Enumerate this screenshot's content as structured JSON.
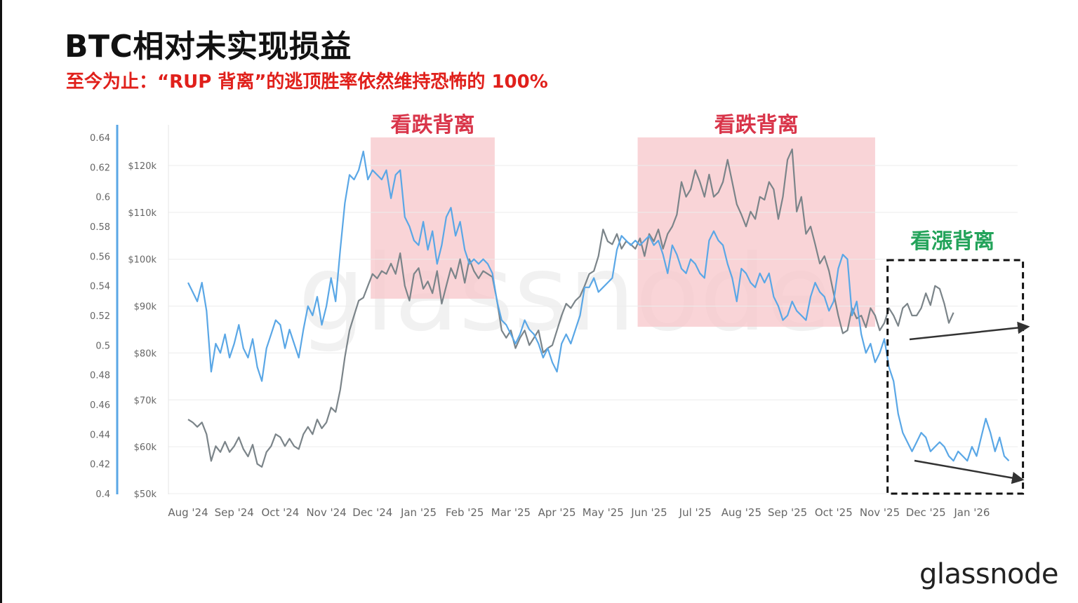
{
  "header": {
    "title": "BTC相对未实现损益",
    "subtitle": "至今为止：“RUP 背离”的逃顶胜率依然维持恐怖的 100%"
  },
  "brand": {
    "logo_text": "glassnode",
    "watermark_text": "glassnode"
  },
  "colors": {
    "btc_price": "#5aa7e6",
    "rup": "#7b8489",
    "bearish_zone": "#f7c5ca",
    "bearish_label": "#d9354a",
    "bullish_label": "#23a35a",
    "title_red": "#e0201b"
  },
  "chart_data": {
    "type": "line",
    "title": "",
    "x_ticks": [
      "Aug '24",
      "Sep '24",
      "Oct '24",
      "Nov '24",
      "Dec '24",
      "Jan '25",
      "Feb '25",
      "Mar '25",
      "Apr '25",
      "May '25",
      "Jun '25",
      "Jul '25",
      "Aug '25",
      "Sep '25",
      "Oct '25",
      "Nov '25",
      "Dec '25",
      "Jan '26"
    ],
    "y_left": {
      "ticks": [
        "0.64",
        "0.62",
        "0.6",
        "0.58",
        "0.56",
        "0.54",
        "0.52",
        "0.5",
        "0.48",
        "0.46",
        "0.44",
        "0.42",
        "0.4"
      ],
      "range": [
        0.4,
        0.64
      ]
    },
    "y_right": {
      "ticks": [
        "$120k",
        "$110k",
        "$100k",
        "$90k",
        "$80k",
        "$70k",
        "$60k",
        "$50k"
      ],
      "range": [
        50,
        120
      ]
    },
    "grid": true,
    "legend": "none",
    "series": [
      {
        "axis": "right",
        "x_month_index": [
          0,
          0.1,
          0.2,
          0.3,
          0.4,
          0.5,
          0.6,
          0.7,
          0.8,
          0.9,
          1.0,
          1.1,
          1.2,
          1.3,
          1.4,
          1.5,
          1.6,
          1.7,
          1.8,
          1.9,
          2.0,
          2.1,
          2.2,
          2.3,
          2.4,
          2.5,
          2.6,
          2.7,
          2.8,
          2.9,
          3.0,
          3.1,
          3.2,
          3.3,
          3.4,
          3.5,
          3.6,
          3.7,
          3.8,
          3.9,
          4.0,
          4.1,
          4.2,
          4.3,
          4.4,
          4.5,
          4.6,
          4.7,
          4.8,
          4.9,
          5.0,
          5.1,
          5.2,
          5.3,
          5.4,
          5.5,
          5.6,
          5.7,
          5.8,
          5.9,
          6.0,
          6.1,
          6.2,
          6.3,
          6.4,
          6.5,
          6.6,
          6.7,
          6.8,
          6.9,
          7.0,
          7.1,
          7.2,
          7.3,
          7.4,
          7.5,
          7.6,
          7.7,
          7.8,
          7.9,
          8.0,
          8.1,
          8.2,
          8.3,
          8.4,
          8.5,
          8.6,
          8.7,
          8.8,
          8.9,
          9.0,
          9.1,
          9.2,
          9.3,
          9.4,
          9.5,
          9.6,
          9.7,
          9.8,
          9.9,
          10.0,
          10.1,
          10.2,
          10.3,
          10.4,
          10.5,
          10.6,
          10.7,
          10.8,
          10.9,
          11.0,
          11.1,
          11.2,
          11.3,
          11.4,
          11.5,
          11.6,
          11.7,
          11.8,
          11.9,
          12.0,
          12.1,
          12.2,
          12.3,
          12.4,
          12.5,
          12.6,
          12.7,
          12.8,
          12.9,
          13.0,
          13.1,
          13.2,
          13.3,
          13.4,
          13.5,
          13.6,
          13.7,
          13.8,
          13.9,
          14.0,
          14.1,
          14.2,
          14.3,
          14.4,
          14.5,
          14.6,
          14.7,
          14.8,
          14.9,
          15.0,
          15.1,
          15.2,
          15.3,
          15.4,
          15.5,
          15.6,
          15.7,
          15.8,
          15.9,
          16.0,
          16.1,
          16.2,
          16.3,
          16.4,
          16.5,
          16.6,
          16.7,
          16.8,
          16.9,
          17.0,
          17.1,
          17.2,
          17.3,
          17.4,
          17.5,
          17.6,
          17.7,
          17.8
        ],
        "values": [
          95,
          93,
          91,
          95,
          89,
          76,
          82,
          80,
          84,
          79,
          82,
          86,
          81,
          79,
          83,
          77,
          74,
          81,
          84,
          87,
          86,
          81,
          85,
          82,
          79,
          85,
          90,
          88,
          92,
          86,
          90,
          96,
          91,
          102,
          112,
          118,
          117,
          119,
          123,
          117,
          119,
          118,
          117,
          119,
          113,
          118,
          119,
          109,
          107,
          104,
          103,
          108,
          102,
          106,
          99,
          103,
          109,
          111,
          105,
          108,
          102,
          99,
          100,
          99,
          100,
          99,
          97,
          91,
          87,
          86,
          84,
          82,
          84,
          87,
          85,
          84,
          82,
          79,
          81,
          78,
          76,
          82,
          84,
          82,
          85,
          88,
          94,
          94,
          96,
          93,
          94,
          95,
          96,
          102,
          105,
          104,
          103,
          104,
          103,
          104,
          105,
          103,
          104,
          101,
          97,
          103,
          101,
          98,
          97,
          100,
          99,
          97,
          96,
          104,
          106,
          104,
          103,
          99,
          96,
          91,
          98,
          97,
          95,
          94,
          97,
          95,
          97,
          92,
          90,
          87,
          88,
          91,
          89,
          88,
          87,
          92,
          95,
          93,
          92,
          89,
          91,
          98,
          101,
          100,
          88,
          91,
          84,
          80,
          82,
          78,
          80,
          83,
          77,
          74,
          67,
          63,
          61,
          59,
          61,
          63,
          62,
          59,
          60,
          61,
          60,
          58,
          57,
          59,
          58,
          57,
          60,
          58,
          62,
          66,
          63,
          59,
          62,
          58,
          57
        ]
      },
      {
        "axis": "left",
        "x_month_index": [
          0,
          0.1,
          0.2,
          0.3,
          0.4,
          0.5,
          0.6,
          0.7,
          0.8,
          0.9,
          1.0,
          1.1,
          1.2,
          1.3,
          1.4,
          1.5,
          1.6,
          1.7,
          1.8,
          1.9,
          2.0,
          2.1,
          2.2,
          2.3,
          2.4,
          2.5,
          2.6,
          2.7,
          2.8,
          2.9,
          3.0,
          3.1,
          3.2,
          3.3,
          3.4,
          3.5,
          3.6,
          3.7,
          3.8,
          3.9,
          4.0,
          4.1,
          4.2,
          4.3,
          4.4,
          4.5,
          4.6,
          4.7,
          4.8,
          4.9,
          5.0,
          5.1,
          5.2,
          5.3,
          5.4,
          5.5,
          5.6,
          5.7,
          5.8,
          5.9,
          6.0,
          6.1,
          6.2,
          6.3,
          6.4,
          6.5,
          6.6,
          6.7,
          6.8,
          6.9,
          7.0,
          7.1,
          7.2,
          7.3,
          7.4,
          7.5,
          7.6,
          7.7,
          7.8,
          7.9,
          8.0,
          8.1,
          8.2,
          8.3,
          8.4,
          8.5,
          8.6,
          8.7,
          8.8,
          8.9,
          9.0,
          9.1,
          9.2,
          9.3,
          9.4,
          9.5,
          9.6,
          9.7,
          9.8,
          9.9,
          10.0,
          10.1,
          10.2,
          10.3,
          10.4,
          10.5,
          10.6,
          10.7,
          10.8,
          10.9,
          11.0,
          11.1,
          11.2,
          11.3,
          11.4,
          11.5,
          11.6,
          11.7,
          11.8,
          11.9,
          12.0,
          12.1,
          12.2,
          12.3,
          12.4,
          12.5,
          12.6,
          12.7,
          12.8,
          12.9,
          13.0,
          13.1,
          13.2,
          13.3,
          13.4,
          13.5,
          13.6,
          13.7,
          13.8,
          13.9,
          14.0,
          14.1,
          14.2,
          14.3,
          14.4,
          14.5,
          14.6,
          14.7,
          14.8,
          14.9,
          15.0,
          15.1,
          15.2,
          15.3,
          15.4,
          15.5,
          15.6,
          15.7,
          15.8,
          15.9,
          16.0,
          16.1,
          16.2,
          16.3,
          16.4,
          16.5,
          16.6,
          16.7,
          16.8,
          16.9,
          17.0,
          17.1,
          17.2,
          17.3,
          17.4,
          17.5,
          17.6,
          17.7,
          17.8
        ],
        "values": [
          0.45,
          0.448,
          0.445,
          0.448,
          0.44,
          0.422,
          0.432,
          0.428,
          0.435,
          0.428,
          0.432,
          0.438,
          0.43,
          0.425,
          0.433,
          0.42,
          0.418,
          0.428,
          0.432,
          0.44,
          0.438,
          0.432,
          0.437,
          0.432,
          0.43,
          0.44,
          0.445,
          0.44,
          0.45,
          0.444,
          0.448,
          0.458,
          0.455,
          0.47,
          0.492,
          0.51,
          0.52,
          0.53,
          0.532,
          0.54,
          0.548,
          0.545,
          0.55,
          0.548,
          0.555,
          0.548,
          0.562,
          0.54,
          0.53,
          0.548,
          0.552,
          0.538,
          0.543,
          0.535,
          0.55,
          0.528,
          0.54,
          0.552,
          0.545,
          0.558,
          0.542,
          0.558,
          0.55,
          0.545,
          0.55,
          0.548,
          0.546,
          0.53,
          0.51,
          0.505,
          0.51,
          0.498,
          0.505,
          0.51,
          0.5,
          0.505,
          0.51,
          0.495,
          0.498,
          0.5,
          0.51,
          0.52,
          0.528,
          0.525,
          0.53,
          0.533,
          0.54,
          0.548,
          0.55,
          0.56,
          0.578,
          0.57,
          0.568,
          0.575,
          0.565,
          0.57,
          0.568,
          0.565,
          0.572,
          0.56,
          0.575,
          0.57,
          0.578,
          0.565,
          0.575,
          0.58,
          0.588,
          0.61,
          0.6,
          0.605,
          0.618,
          0.61,
          0.6,
          0.615,
          0.6,
          0.603,
          0.61,
          0.625,
          0.61,
          0.595,
          0.588,
          0.58,
          0.59,
          0.585,
          0.6,
          0.598,
          0.61,
          0.605,
          0.585,
          0.6,
          0.625,
          0.632,
          0.59,
          0.6,
          0.575,
          0.58,
          0.568,
          0.555,
          0.56,
          0.55,
          0.535,
          0.52,
          0.508,
          0.51,
          0.525,
          0.518,
          0.52,
          0.512,
          0.525,
          0.52,
          0.51,
          0.515,
          0.525,
          0.52,
          0.513,
          0.525,
          0.528,
          0.52,
          0.52,
          0.525,
          0.535,
          0.527,
          0.54,
          0.538,
          0.528,
          0.515,
          0.522
        ]
      }
    ],
    "regions": [
      {
        "label": "看跌背离",
        "from_month_index": 3.96,
        "to_month_index": 6.65,
        "kind": "bearish"
      },
      {
        "label": "看跌背离",
        "from_month_index": 9.75,
        "to_month_index": 14.9,
        "kind": "bearish"
      },
      {
        "label": "看漲背离",
        "from_month_index": 15.17,
        "to_month_index": 18.35,
        "kind": "bullish"
      }
    ],
    "trend_arrows": [
      {
        "series": "btc_price",
        "direction": "down"
      },
      {
        "series": "rup",
        "direction": "up"
      }
    ]
  }
}
